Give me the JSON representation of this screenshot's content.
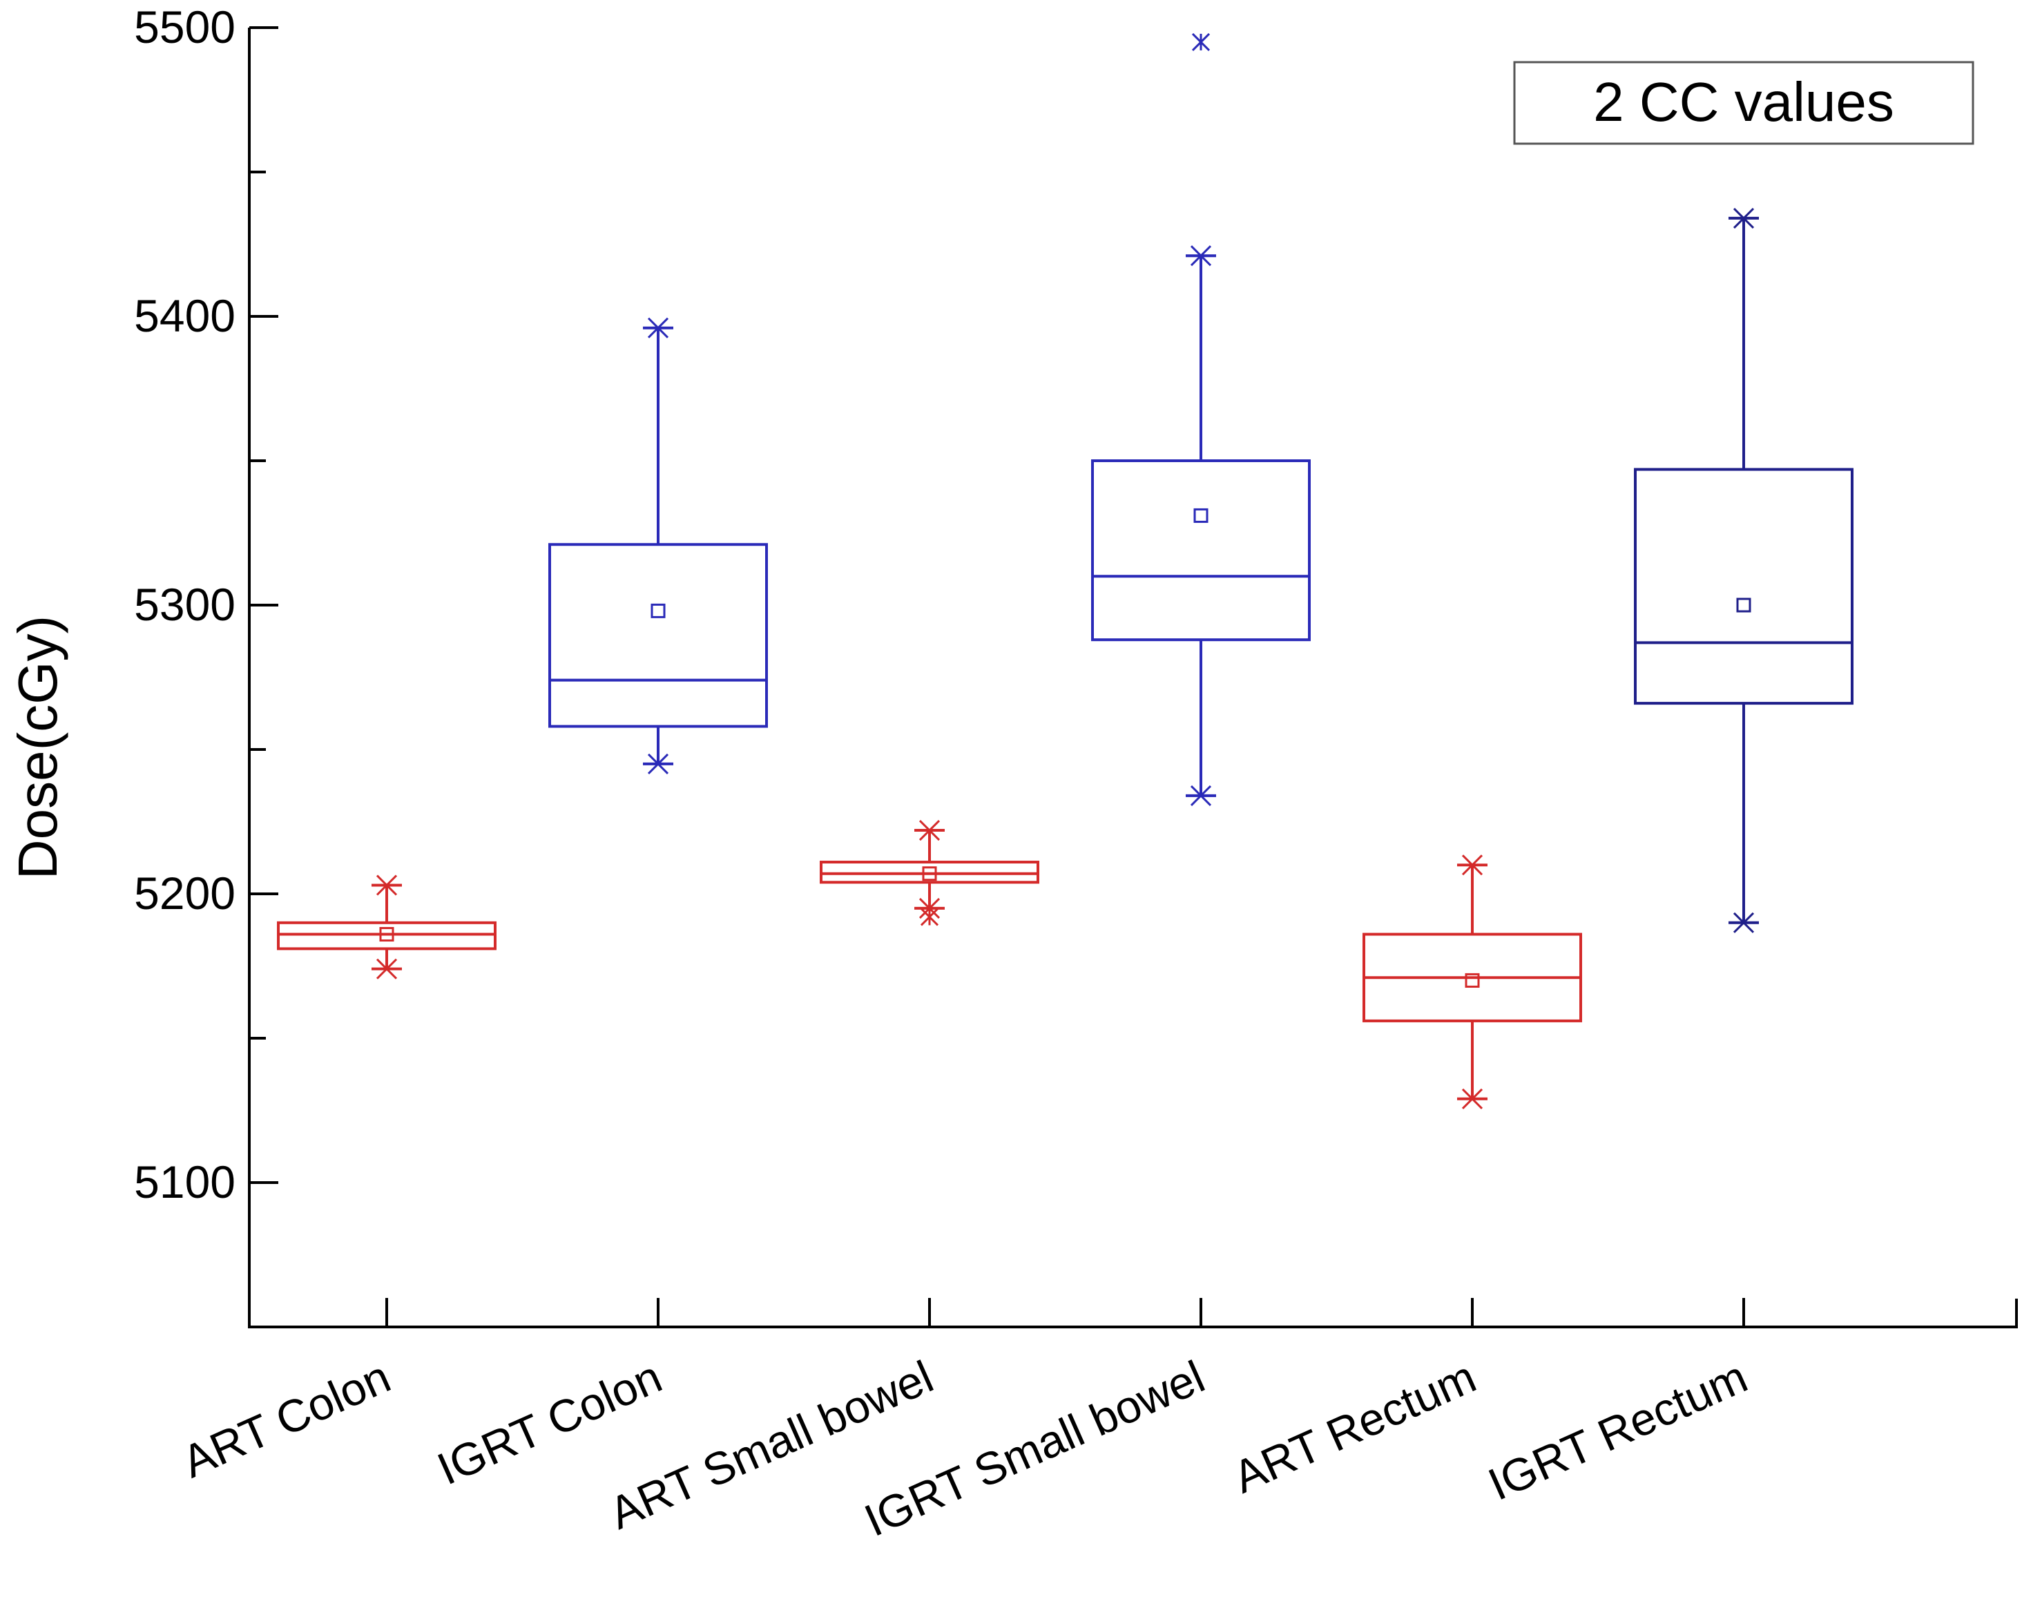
{
  "chart_data": {
    "type": "box",
    "title": "",
    "legend_label": "2 CC values",
    "legend_position": "top-right",
    "xlabel": "",
    "ylabel": "Dose(cGy)",
    "ylim": [
      5050,
      5500
    ],
    "yticks": [
      5100,
      5200,
      5300,
      5400,
      5500
    ],
    "yticks_minor": [
      5150,
      5250,
      5350,
      5450
    ],
    "categories": [
      "ART Colon",
      "IGRT Colon",
      "ART Small bowel",
      "IGRT Small bowel",
      "ART Rectum",
      "IGRT Rectum"
    ],
    "series": [
      {
        "name": "ART Colon",
        "color": "#d42a2a",
        "whisker_low": 5174,
        "q1": 5181,
        "median": 5186,
        "q3": 5190,
        "whisker_high": 5203,
        "mean": 5186,
        "outliers": []
      },
      {
        "name": "IGRT Colon",
        "color": "#2a2ab8",
        "whisker_low": 5245,
        "q1": 5258,
        "median": 5274,
        "q3": 5321,
        "whisker_high": 5396,
        "mean": 5298,
        "outliers": []
      },
      {
        "name": "ART Small bowel",
        "color": "#d42a2a",
        "whisker_low": 5195,
        "q1": 5204,
        "median": 5207,
        "q3": 5211,
        "whisker_high": 5222,
        "mean": 5207,
        "outliers": [
          5192
        ]
      },
      {
        "name": "IGRT Small bowel",
        "color": "#2a2ab8",
        "whisker_low": 5234,
        "q1": 5288,
        "median": 5310,
        "q3": 5350,
        "whisker_high": 5421,
        "mean": 5331,
        "outliers": [
          5495
        ]
      },
      {
        "name": "ART Rectum",
        "color": "#d42a2a",
        "whisker_low": 5129,
        "q1": 5156,
        "median": 5171,
        "q3": 5186,
        "whisker_high": 5210,
        "mean": 5170,
        "outliers": []
      },
      {
        "name": "IGRT Rectum",
        "color": "#1f1f8a",
        "whisker_low": 5190,
        "q1": 5266,
        "median": 5287,
        "q3": 5347,
        "whisker_high": 5434,
        "mean": 5300,
        "outliers": []
      }
    ]
  }
}
